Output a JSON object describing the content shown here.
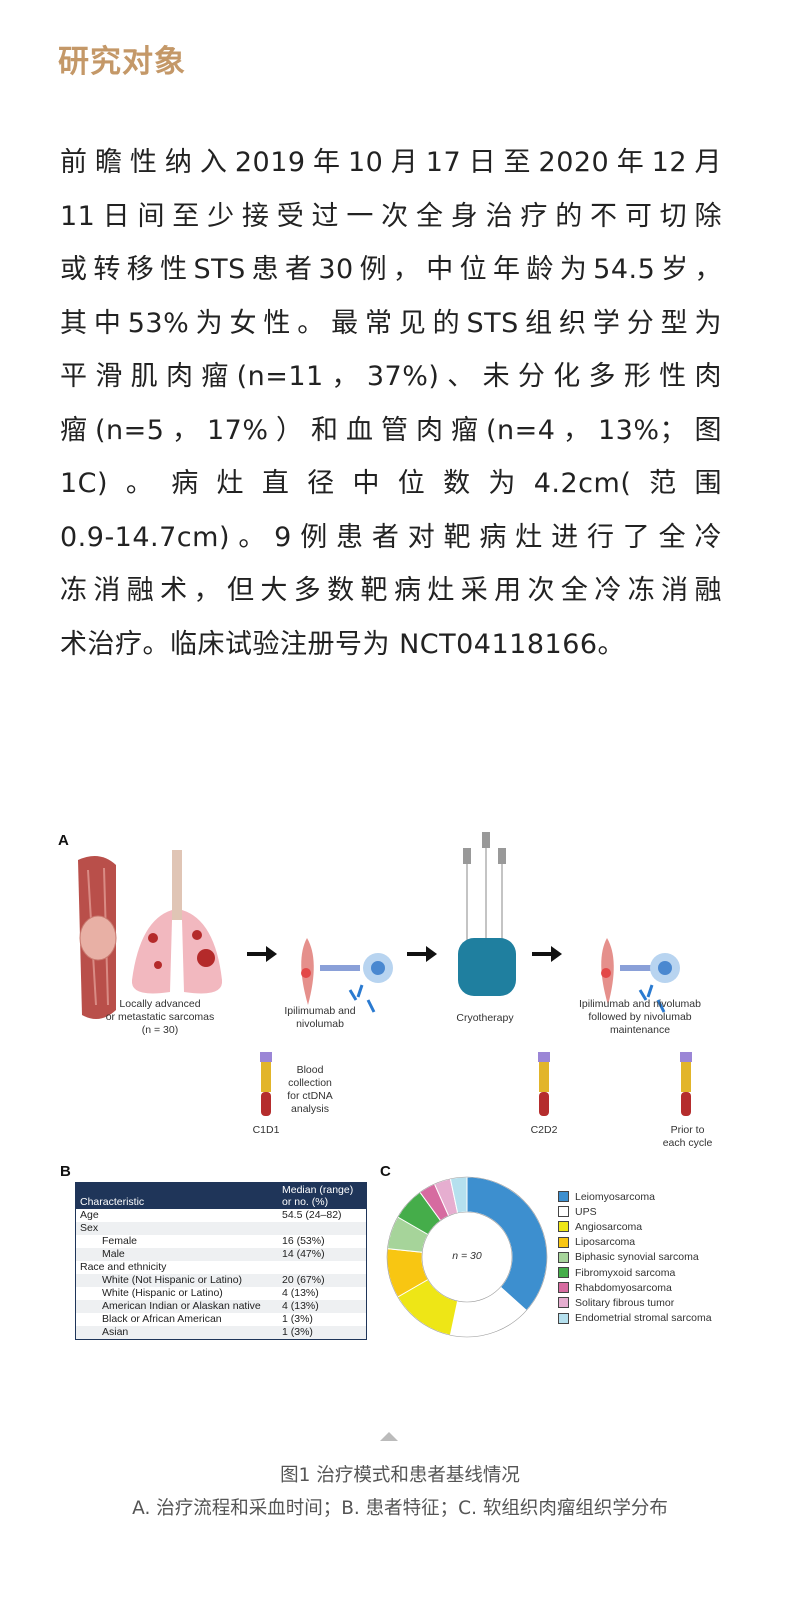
{
  "section_title": "研究对象",
  "paragraph_lines": [
    "前瞻性纳入2019年10月17日至2020年12月",
    "11日间至少接受过一次全身治疗的不可切除",
    "或转移性STS患者30例，中位年龄为54.5岁，",
    "其中53%为女性。最常见的STS组织学分型为",
    "平滑肌肉瘤(n=11，37%)、未分化多形性肉",
    "瘤(n=5，17%）和血管肉瘤(n=4，13%；图",
    "1C)。病灶直径中位数为4.2cm(范围",
    "0.9-14.7cm)。9例患者对靶病灶进行了全冷",
    "冻消融术，但大多数靶病灶采用次全冷冻消融",
    "术治疗。临床试验注册号为 NCT04118166。"
  ],
  "figure": {
    "panel_a": {
      "label": "A",
      "steps": [
        {
          "text": [
            "Locally advanced",
            "or metastatic sarcomas",
            "(n = 30)"
          ]
        },
        {
          "text": [
            "Ipilimumab and",
            "nivolumab"
          ]
        },
        {
          "text": [
            "Cryotherapy"
          ]
        },
        {
          "text": [
            "Ipilimumab and nivolumab",
            "followed by nivolumab",
            "maintenance"
          ]
        }
      ],
      "blood_note": [
        "Blood collection",
        "for ctDNA",
        "analysis"
      ],
      "timepoints": [
        "C1D1",
        "C2D2",
        "Prior to each cycle"
      ],
      "timepoint_lines": [
        [
          "C1D1"
        ],
        [
          "C2D2"
        ],
        [
          "Prior to",
          "each cycle"
        ]
      ]
    },
    "panel_b": {
      "label": "B",
      "headers": [
        "Characteristic",
        "Median (range) or no. (%)"
      ],
      "header_lines": [
        [
          "Characteristic"
        ],
        [
          "Median (range)",
          "or no. (%)"
        ]
      ],
      "rows": [
        {
          "c": "Age",
          "v": "54.5 (24–82)",
          "indent": false
        },
        {
          "c": "Sex",
          "v": "",
          "indent": false
        },
        {
          "c": "Female",
          "v": "16 (53%)",
          "indent": true
        },
        {
          "c": "Male",
          "v": "14 (47%)",
          "indent": true
        },
        {
          "c": "Race and ethnicity",
          "v": "",
          "indent": false
        },
        {
          "c": "White (Not Hispanic or Latino)",
          "v": "20 (67%)",
          "indent": true
        },
        {
          "c": "White (Hispanic or Latino)",
          "v": "4 (13%)",
          "indent": true
        },
        {
          "c": "American Indian or Alaskan native",
          "v": "4 (13%)",
          "indent": true
        },
        {
          "c": "Black or African American",
          "v": "1 (3%)",
          "indent": true
        },
        {
          "c": "Asian",
          "v": "1 (3%)",
          "indent": true
        }
      ]
    },
    "panel_c": {
      "label": "C",
      "center_label": "n = 30"
    }
  },
  "chart_data": {
    "type": "pie",
    "donut": true,
    "center_label": "n = 30",
    "legend_position": "right",
    "categories": [
      "Leiomyosarcoma",
      "UPS",
      "Angiosarcoma",
      "Liposarcoma",
      "Biphasic synovial sarcoma",
      "Fibromyxoid sarcoma",
      "Rhabdomyosarcoma",
      "Solitary fibrous tumor",
      "Endometrial stromal sarcoma"
    ],
    "values": [
      11,
      5,
      4,
      3,
      2,
      2,
      1,
      1,
      1
    ],
    "colors": [
      "#3d8fcf",
      "#ffffff",
      "#eee616",
      "#f8c612",
      "#a6d49a",
      "#45ad4a",
      "#d66ba0",
      "#e6aed0",
      "#b5e0ee"
    ]
  },
  "caption": {
    "line1": "图1 治疗模式和患者基线情况",
    "line2": "A. 治疗流程和采血时间；B. 患者特征；C. 软组织肉瘤组织学分布"
  },
  "colors": {
    "title": "#c49868",
    "table_header": "#1f3559"
  }
}
